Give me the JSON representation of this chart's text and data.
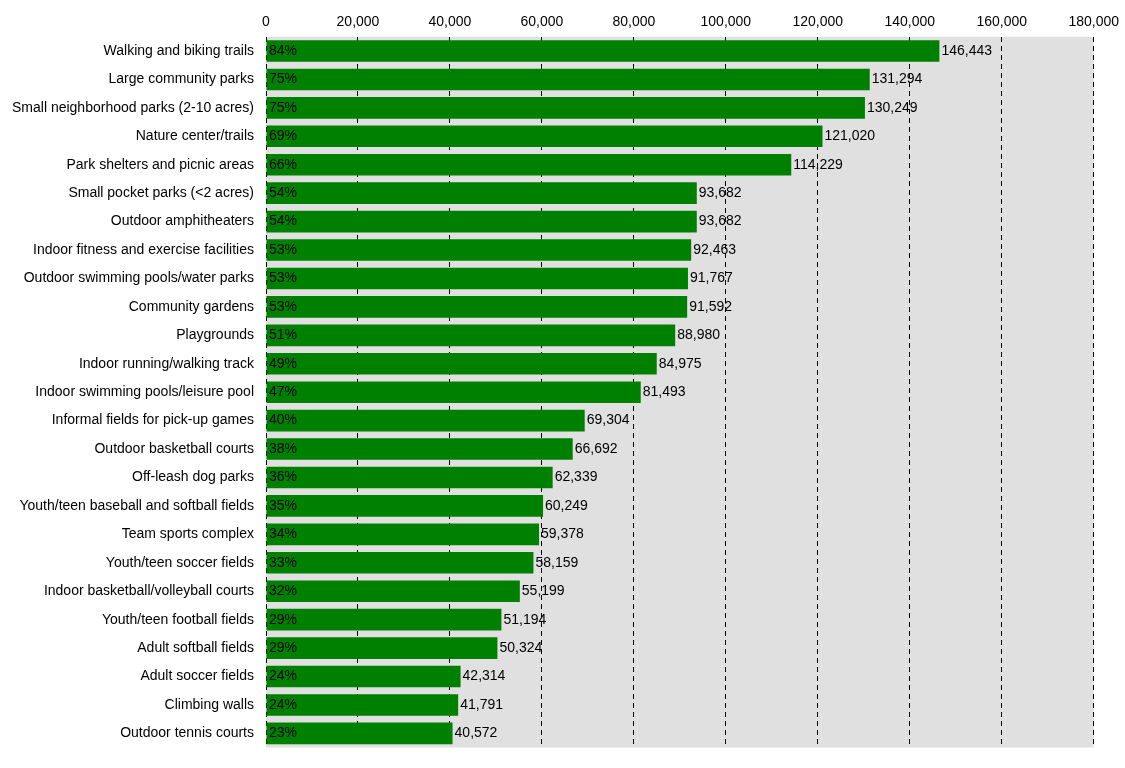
{
  "chart_data": {
    "type": "bar",
    "orientation": "horizontal",
    "categories": [
      "Walking and biking trails",
      "Large community parks",
      "Small neighborhood parks (2-10 acres)",
      "Nature center/trails",
      "Park shelters and picnic areas",
      "Small pocket parks (<2 acres)",
      "Outdoor amphitheaters",
      "Indoor fitness and exercise facilities",
      "Outdoor swimming pools/water parks",
      "Community gardens",
      "Playgrounds",
      "Indoor running/walking track",
      "Indoor swimming pools/leisure pool",
      "Informal fields for pick-up games",
      "Outdoor basketball courts",
      "Off-leash dog parks",
      "Youth/teen baseball and softball fields",
      "Team sports complex",
      "Youth/teen soccer fields",
      "Indoor basketball/volleyball courts",
      "Youth/teen football fields",
      "Adult softball fields",
      "Adult soccer fields",
      "Climbing walls",
      "Outdoor tennis courts"
    ],
    "values": [
      146443,
      131294,
      130249,
      121020,
      114229,
      93682,
      93682,
      92463,
      91767,
      91592,
      88980,
      84975,
      81493,
      69304,
      66692,
      62339,
      60249,
      59378,
      58159,
      55199,
      51194,
      50324,
      42314,
      41791,
      40572
    ],
    "color": "#008000",
    "xlim": [
      0,
      180000
    ],
    "xticks": [
      {
        "value": 0,
        "label": "0"
      },
      {
        "value": 20000,
        "label": "20,000"
      },
      {
        "value": 40000,
        "label": "40,000"
      },
      {
        "value": 60000,
        "label": "60,000"
      },
      {
        "value": 80000,
        "label": "80,000"
      },
      {
        "value": 100000,
        "label": "100,000"
      },
      {
        "value": 120000,
        "label": "120,000"
      },
      {
        "value": 140000,
        "label": "140,000"
      },
      {
        "value": 160000,
        "label": "160,000"
      },
      {
        "value": 180000,
        "label": "180,000"
      }
    ],
    "grid": "x",
    "line_style": "dashed",
    "value_labels": [
      "146,443",
      "131,294",
      "130,249",
      "121,020",
      "114,229",
      "93,682",
      "93,682",
      "92,463",
      "91,767",
      "91,592",
      "88,980",
      "84,975",
      "81,493",
      "69,304",
      "66,692",
      "62,339",
      "60,249",
      "59,378",
      "58,159",
      "55,199",
      "51,194",
      "50,324",
      "42,314",
      "41,791",
      "40,572"
    ],
    "annotations": [
      {
        "text": "84%",
        "y": "Walking and biking trails"
      },
      {
        "text": "75%",
        "y": "Large community parks"
      },
      {
        "text": "75%",
        "y": "Small neighborhood parks (2-10 acres)"
      },
      {
        "text": "69%",
        "y": "Nature center/trails"
      },
      {
        "text": "66%",
        "y": "Park shelters and picnic areas"
      },
      {
        "text": "54%",
        "y": "Small pocket parks (<2 acres)"
      },
      {
        "text": "54%",
        "y": "Outdoor amphitheaters"
      },
      {
        "text": "53%",
        "y": "Indoor fitness and exercise facilities"
      },
      {
        "text": "53%",
        "y": "Outdoor swimming pools/water parks"
      },
      {
        "text": "53%",
        "y": "Community gardens"
      },
      {
        "text": "51%",
        "y": "Playgrounds"
      },
      {
        "text": "49%",
        "y": "Indoor running/walking track"
      },
      {
        "text": "47%",
        "y": "Indoor swimming pools/leisure pool"
      },
      {
        "text": "40%",
        "y": "Informal fields for pick-up games"
      },
      {
        "text": "38%",
        "y": "Outdoor basketball courts"
      },
      {
        "text": "36%",
        "y": "Off-leash dog parks"
      },
      {
        "text": "35%",
        "y": "Youth/teen baseball and softball fields"
      },
      {
        "text": "34%",
        "y": "Team sports complex"
      },
      {
        "text": "33%",
        "y": "Youth/teen soccer fields"
      },
      {
        "text": "32%",
        "y": "Indoor basketball/volleyball courts"
      },
      {
        "text": "29%",
        "y": "Youth/teen football fields"
      },
      {
        "text": "29%",
        "y": "Adult softball fields"
      },
      {
        "text": "24%",
        "y": "Adult soccer fields"
      },
      {
        "text": "24%",
        "y": "Climbing walls"
      },
      {
        "text": "23%",
        "y": "Outdoor tennis courts"
      }
    ]
  }
}
